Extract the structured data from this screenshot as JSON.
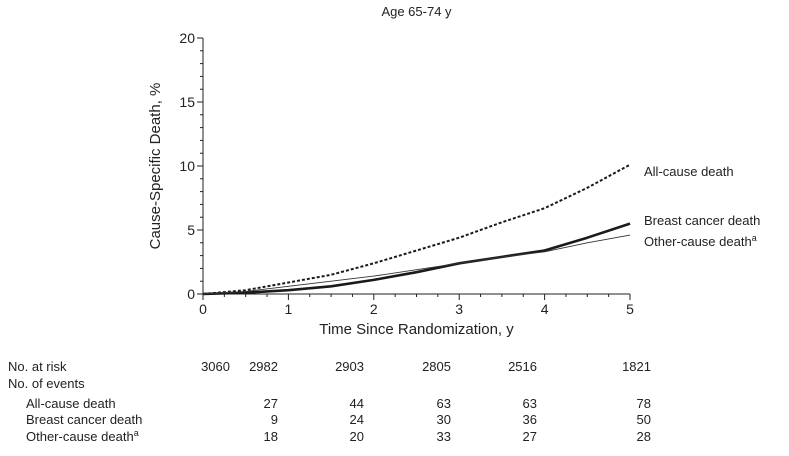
{
  "chart_data": {
    "type": "line",
    "title": "Age 65-74 y",
    "xlabel": "Time Since Randomization, y",
    "ylabel": "Cause-Specific Death, %",
    "xlim": [
      0,
      5
    ],
    "ylim": [
      0,
      20
    ],
    "x_ticks": [
      0,
      1,
      2,
      3,
      4,
      5
    ],
    "y_ticks": [
      0,
      5,
      10,
      15,
      20
    ],
    "grid": false,
    "series": [
      {
        "name": "All-cause death",
        "style": "dashed",
        "x": [
          0,
          0.5,
          1,
          1.5,
          2,
          2.5,
          3,
          3.5,
          4,
          4.5,
          5
        ],
        "y": [
          0,
          0.3,
          0.9,
          1.5,
          2.4,
          3.4,
          4.4,
          5.6,
          6.7,
          8.3,
          10.1
        ]
      },
      {
        "name": "Breast cancer death",
        "style": "thick",
        "x": [
          0,
          0.5,
          1,
          1.5,
          2,
          2.5,
          3,
          3.5,
          4,
          4.5,
          5
        ],
        "y": [
          0,
          0.1,
          0.3,
          0.6,
          1.1,
          1.7,
          2.4,
          2.9,
          3.4,
          4.4,
          5.5
        ]
      },
      {
        "name": "Other-cause death",
        "name_superscript": "a",
        "style": "thin",
        "x": [
          0,
          0.5,
          1,
          1.5,
          2,
          2.5,
          3,
          3.5,
          4,
          4.5,
          5
        ],
        "y": [
          0,
          0.2,
          0.6,
          1.0,
          1.4,
          1.9,
          2.4,
          2.9,
          3.3,
          4.0,
          4.6
        ]
      }
    ],
    "risk_table": {
      "times": [
        0,
        1,
        2,
        3,
        4,
        5
      ],
      "at_risk_label": "No. at risk",
      "at_risk": [
        "3060",
        "2982",
        "2903",
        "2805",
        "2516",
        "1821"
      ],
      "events_label": "No. of events",
      "events": [
        {
          "label": "All-cause death",
          "sup": "",
          "values": [
            "27",
            "44",
            "63",
            "63",
            "78"
          ]
        },
        {
          "label": "Breast cancer death",
          "sup": "",
          "values": [
            "9",
            "24",
            "30",
            "36",
            "50"
          ]
        },
        {
          "label": "Other-cause death",
          "sup": "a",
          "values": [
            "18",
            "20",
            "33",
            "27",
            "28"
          ]
        }
      ]
    }
  }
}
